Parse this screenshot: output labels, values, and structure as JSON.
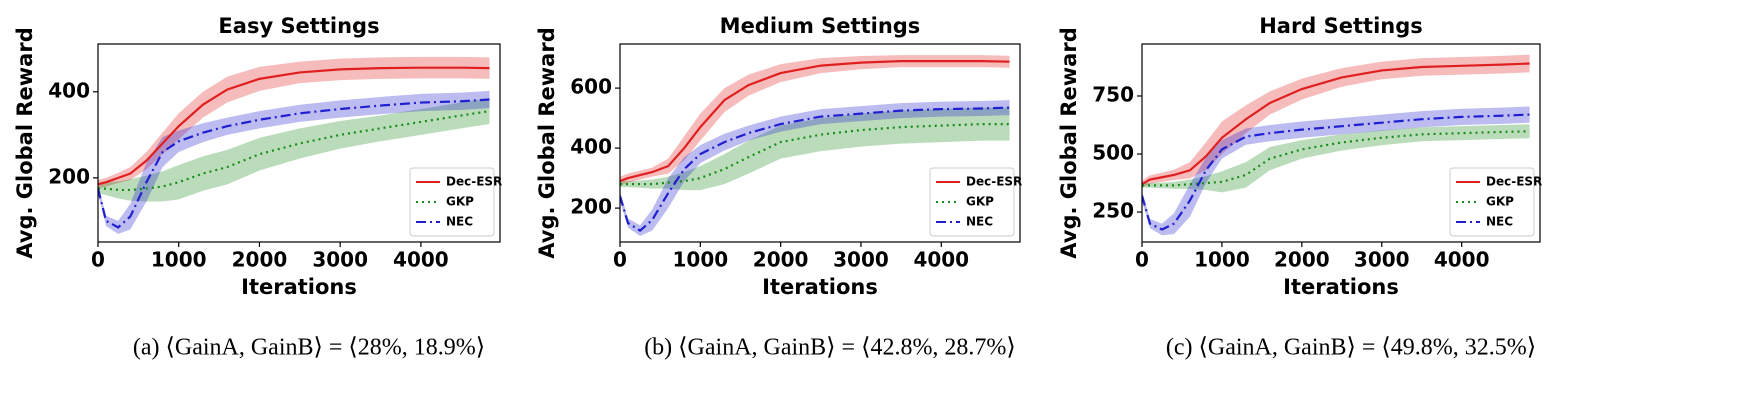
{
  "chart_data": [
    {
      "type": "line",
      "title": "Easy Settings",
      "caption": "(a) ⟨GainA, GainB⟩ = ⟨28%, 18.9%⟩",
      "xlabel": "Iterations",
      "ylabel": "Avg. Global Reward",
      "legend": "lower right",
      "x": [
        0,
        100,
        250,
        400,
        600,
        800,
        1000,
        1300,
        1600,
        2000,
        2500,
        3000,
        3500,
        4000,
        4500,
        4850
      ],
      "xlim": [
        0,
        4980
      ],
      "ylim": [
        51,
        511
      ],
      "xticks": [
        0,
        1000,
        2000,
        3000,
        4000
      ],
      "yticks": [
        200,
        400
      ],
      "series": [
        {
          "name": "Dec-ESR",
          "color": "#e02020",
          "linestyle": "solid",
          "values": [
            185,
            190,
            200,
            210,
            240,
            280,
            320,
            370,
            405,
            430,
            445,
            452,
            455,
            456,
            456,
            455
          ],
          "spread": [
            10,
            10,
            12,
            15,
            20,
            25,
            30,
            30,
            30,
            28,
            25,
            25,
            25,
            25,
            25,
            25
          ]
        },
        {
          "name": "GKP",
          "color": "#1a8a1a",
          "linestyle": "dotted",
          "values": [
            175,
            175,
            172,
            172,
            175,
            180,
            190,
            210,
            225,
            255,
            280,
            300,
            315,
            330,
            345,
            355
          ],
          "spread": [
            10,
            15,
            20,
            25,
            30,
            35,
            40,
            40,
            40,
            38,
            35,
            32,
            30,
            30,
            30,
            30
          ]
        },
        {
          "name": "NEC",
          "color": "#2020d0",
          "linestyle": "dashdot",
          "values": [
            175,
            100,
            85,
            110,
            190,
            260,
            285,
            305,
            320,
            335,
            350,
            360,
            368,
            375,
            378,
            382
          ],
          "spread": [
            10,
            12,
            15,
            30,
            45,
            35,
            25,
            22,
            20,
            20,
            20,
            20,
            20,
            20,
            20,
            20
          ]
        }
      ]
    },
    {
      "type": "line",
      "title": "Medium Settings",
      "caption": "(b) ⟨GainA, GainB⟩ = ⟨42.8%, 28.7%⟩",
      "xlabel": "Iterations",
      "ylabel": "Avg. Global Reward",
      "legend": "lower right",
      "x": [
        0,
        100,
        250,
        400,
        600,
        800,
        1000,
        1300,
        1600,
        2000,
        2500,
        3000,
        3500,
        4000,
        4500,
        4850
      ],
      "xlim": [
        0,
        4980
      ],
      "ylim": [
        87,
        747
      ],
      "xticks": [
        0,
        1000,
        2000,
        3000,
        4000
      ],
      "yticks": [
        200,
        400,
        600
      ],
      "series": [
        {
          "name": "Dec-ESR",
          "color": "#e02020",
          "linestyle": "solid",
          "values": [
            290,
            300,
            310,
            320,
            340,
            400,
            470,
            560,
            610,
            650,
            675,
            685,
            690,
            690,
            690,
            688
          ],
          "spread": [
            15,
            15,
            15,
            15,
            25,
            40,
            45,
            40,
            35,
            30,
            25,
            22,
            20,
            20,
            20,
            20
          ]
        },
        {
          "name": "GKP",
          "color": "#1a8a1a",
          "linestyle": "dotted",
          "values": [
            280,
            280,
            280,
            280,
            285,
            290,
            300,
            330,
            370,
            420,
            445,
            460,
            470,
            475,
            480,
            480
          ],
          "spread": [
            10,
            10,
            12,
            15,
            20,
            30,
            40,
            50,
            55,
            55,
            55,
            55,
            55,
            55,
            55,
            55
          ]
        },
        {
          "name": "NEC",
          "color": "#2020d0",
          "linestyle": "dashdot",
          "values": [
            240,
            150,
            125,
            160,
            250,
            330,
            380,
            420,
            450,
            480,
            505,
            515,
            525,
            530,
            532,
            535
          ],
          "spread": [
            15,
            15,
            18,
            35,
            50,
            40,
            30,
            28,
            25,
            25,
            25,
            25,
            25,
            25,
            25,
            25
          ]
        }
      ]
    },
    {
      "type": "line",
      "title": "Hard Settings",
      "caption": "(c) ⟨GainA, GainB⟩ = ⟨49.8%, 32.5%⟩",
      "xlabel": "Iterations",
      "ylabel": "Avg. Global Reward",
      "legend": "lower right",
      "x": [
        0,
        100,
        250,
        400,
        600,
        800,
        1000,
        1300,
        1600,
        2000,
        2500,
        3000,
        3500,
        4000,
        4500,
        4850
      ],
      "xlim": [
        0,
        4980
      ],
      "ylim": [
        121,
        974
      ],
      "xticks": [
        0,
        1000,
        2000,
        3000,
        4000
      ],
      "yticks": [
        250,
        500,
        750
      ],
      "series": [
        {
          "name": "Dec-ESR",
          "color": "#e02020",
          "linestyle": "solid",
          "values": [
            370,
            390,
            400,
            410,
            430,
            490,
            570,
            650,
            720,
            780,
            830,
            860,
            875,
            880,
            885,
            890
          ],
          "spread": [
            15,
            18,
            20,
            22,
            35,
            60,
            70,
            60,
            50,
            45,
            40,
            38,
            38,
            38,
            38,
            38
          ]
        },
        {
          "name": "GKP",
          "color": "#1a8a1a",
          "linestyle": "dotted",
          "values": [
            365,
            365,
            365,
            365,
            370,
            375,
            380,
            410,
            480,
            520,
            550,
            570,
            585,
            590,
            595,
            598
          ],
          "spread": [
            10,
            10,
            12,
            15,
            20,
            30,
            45,
            55,
            50,
            40,
            35,
            32,
            30,
            30,
            30,
            30
          ]
        },
        {
          "name": "NEC",
          "color": "#2020d0",
          "linestyle": "dashdot",
          "values": [
            320,
            200,
            175,
            200,
            300,
            430,
            520,
            575,
            590,
            605,
            620,
            635,
            650,
            660,
            665,
            670
          ],
          "spread": [
            20,
            20,
            25,
            45,
            70,
            55,
            40,
            35,
            35,
            35,
            35,
            35,
            35,
            35,
            35,
            35
          ]
        }
      ]
    }
  ]
}
